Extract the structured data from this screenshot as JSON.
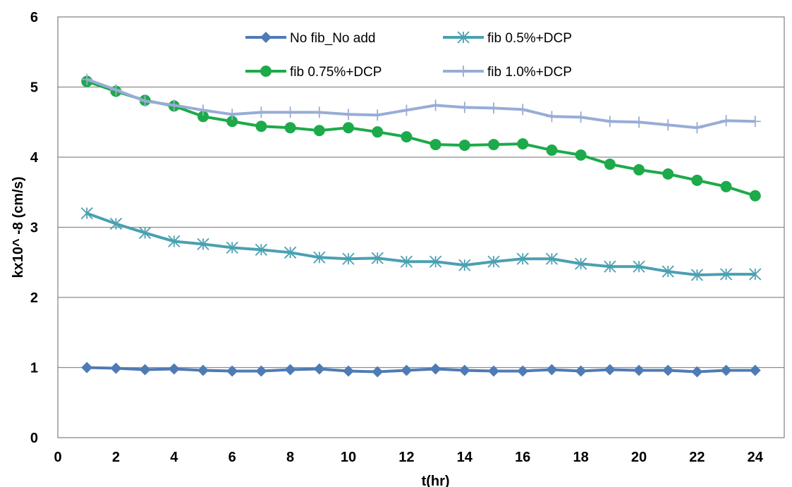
{
  "chart_data": {
    "type": "line",
    "title": "",
    "xlabel": "t(hr)",
    "ylabel": "kx10^ -8 (cm/s)",
    "xlim": [
      0,
      25
    ],
    "ylim": [
      0,
      6
    ],
    "x_ticks": [
      0,
      2,
      4,
      6,
      8,
      10,
      12,
      14,
      16,
      18,
      20,
      22,
      24
    ],
    "y_ticks": [
      0,
      1,
      2,
      3,
      4,
      5,
      6
    ],
    "grid": "horizontal",
    "legend_position": "top",
    "x": [
      1,
      2,
      3,
      4,
      5,
      6,
      7,
      8,
      9,
      10,
      11,
      12,
      13,
      14,
      15,
      16,
      17,
      18,
      19,
      20,
      21,
      22,
      23,
      24
    ],
    "series": [
      {
        "name": "No fib_No add",
        "color": "#4F7BB5",
        "marker": "diamond",
        "values": [
          1.0,
          0.99,
          0.97,
          0.98,
          0.96,
          0.95,
          0.95,
          0.97,
          0.98,
          0.95,
          0.94,
          0.96,
          0.98,
          0.96,
          0.95,
          0.95,
          0.97,
          0.95,
          0.97,
          0.96,
          0.96,
          0.94,
          0.96,
          0.96
        ]
      },
      {
        "name": "fib 0.5%+DCP",
        "color": "#4AA0B2",
        "marker": "asterisk",
        "values": [
          3.2,
          3.05,
          2.92,
          2.8,
          2.76,
          2.71,
          2.68,
          2.64,
          2.57,
          2.55,
          2.56,
          2.51,
          2.51,
          2.46,
          2.51,
          2.55,
          2.55,
          2.48,
          2.44,
          2.44,
          2.37,
          2.32,
          2.33,
          2.33
        ]
      },
      {
        "name": "fib 0.75%+DCP",
        "color": "#1DAA4A",
        "marker": "circle",
        "values": [
          5.08,
          4.94,
          4.81,
          4.73,
          4.58,
          4.51,
          4.44,
          4.42,
          4.38,
          4.42,
          4.36,
          4.29,
          4.18,
          4.17,
          4.18,
          4.19,
          4.1,
          4.03,
          3.9,
          3.82,
          3.76,
          3.67,
          3.58,
          3.45
        ]
      },
      {
        "name": "fib 1.0%+DCP",
        "color": "#98ACD6",
        "marker": "plus",
        "values": [
          5.11,
          4.96,
          4.8,
          4.74,
          4.67,
          4.61,
          4.64,
          4.64,
          4.64,
          4.61,
          4.6,
          4.67,
          4.74,
          4.71,
          4.7,
          4.68,
          4.58,
          4.57,
          4.51,
          4.5,
          4.46,
          4.42,
          4.52,
          4.51
        ]
      }
    ]
  }
}
